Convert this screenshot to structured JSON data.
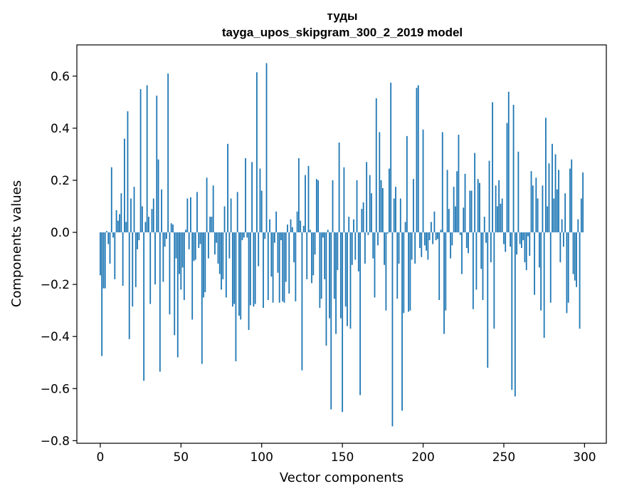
{
  "chart_data": {
    "type": "bar",
    "title": "туды",
    "subtitle": "tayga_upos_skipgram_300_2_2019 model",
    "xlabel": "Vector components",
    "ylabel": "Components values",
    "xlim": [
      -14.5,
      313.5
    ],
    "ylim": [
      -0.81,
      0.72
    ],
    "xticks": [
      0,
      50,
      100,
      150,
      200,
      250,
      300
    ],
    "xtick_labels": [
      "0",
      "50",
      "100",
      "150",
      "200",
      "250",
      "300"
    ],
    "yticks": [
      -0.8,
      -0.6,
      -0.4,
      -0.2,
      0.0,
      0.2,
      0.4,
      0.6
    ],
    "ytick_labels": [
      "−0.8",
      "−0.6",
      "−0.4",
      "−0.2",
      "0.0",
      "0.2",
      "0.4",
      "0.6"
    ],
    "color": "#1f77b4",
    "values": [
      -0.165,
      -0.475,
      -0.215,
      -0.215,
      0.005,
      -0.045,
      -0.12,
      0.25,
      -0.02,
      -0.18,
      0.085,
      0.045,
      0.07,
      0.15,
      -0.205,
      0.36,
      0.04,
      0.465,
      -0.41,
      0.13,
      -0.285,
      0.175,
      -0.21,
      -0.065,
      -0.03,
      0.55,
      0.1,
      -0.57,
      0.04,
      0.565,
      0.06,
      -0.275,
      0.09,
      0.13,
      -0.2,
      0.525,
      0.28,
      -0.535,
      0.165,
      -0.19,
      -0.055,
      -0.025,
      0.61,
      -0.315,
      0.035,
      0.03,
      -0.395,
      -0.1,
      -0.48,
      -0.16,
      -0.22,
      -0.135,
      -0.26,
      0.01,
      0.13,
      -0.065,
      0.135,
      -0.335,
      -0.11,
      -0.105,
      0.155,
      -0.06,
      -0.045,
      -0.505,
      -0.25,
      -0.23,
      0.21,
      -0.1,
      0.06,
      0.06,
      0.18,
      -0.085,
      -0.04,
      -0.12,
      -0.16,
      -0.22,
      -0.18,
      0.1,
      -0.25,
      0.34,
      -0.1,
      0.13,
      -0.285,
      -0.275,
      -0.495,
      0.155,
      -0.32,
      -0.335,
      -0.03,
      -0.02,
      0.285,
      -0.02,
      -0.375,
      -0.28,
      0.27,
      -0.285,
      -0.275,
      0.615,
      -0.13,
      0.245,
      0.16,
      -0.29,
      -0.025,
      0.65,
      -0.26,
      0.05,
      -0.17,
      -0.27,
      -0.04,
      0.08,
      -0.155,
      -0.27,
      -0.03,
      -0.265,
      -0.27,
      -0.19,
      0.03,
      -0.235,
      0.05,
      0.02,
      -0.115,
      -0.265,
      0.08,
      0.285,
      0.045,
      -0.53,
      0.025,
      0.22,
      -0.18,
      0.255,
      0.01,
      -0.195,
      -0.165,
      -0.085,
      0.205,
      0.2,
      -0.29,
      -0.255,
      -0.02,
      -0.18,
      -0.435,
      0.01,
      -0.33,
      -0.68,
      0.2,
      -0.255,
      -0.39,
      -0.145,
      0.345,
      -0.33,
      -0.69,
      0.25,
      -0.285,
      -0.36,
      0.06,
      -0.37,
      -0.125,
      0.05,
      -0.105,
      0.2,
      -0.15,
      -0.625,
      0.09,
      0.115,
      -0.12,
      0.27,
      -0.01,
      0.22,
      0.15,
      -0.1,
      -0.25,
      0.515,
      -0.05,
      0.385,
      0.2,
      0.17,
      -0.125,
      -0.3,
      -0.005,
      0.245,
      0.575,
      -0.745,
      0.13,
      0.175,
      -0.255,
      -0.12,
      0.13,
      -0.685,
      -0.31,
      0.04,
      0.37,
      -0.305,
      -0.3,
      -0.105,
      0.205,
      -0.12,
      0.555,
      0.565,
      -0.06,
      -0.095,
      0.395,
      -0.05,
      -0.07,
      -0.105,
      -0.03,
      0.04,
      -0.045,
      0.08,
      -0.03,
      -0.025,
      -0.26,
      0.01,
      0.385,
      -0.39,
      -0.3,
      0.24,
      0.09,
      -0.1,
      -0.05,
      0.175,
      0.1,
      0.235,
      0.375,
      -0.01,
      -0.16,
      0.095,
      0.225,
      -0.06,
      -0.08,
      0.16,
      0.16,
      -0.295,
      0.305,
      -0.22,
      0.205,
      0.19,
      -0.14,
      -0.26,
      0.06,
      -0.04,
      -0.52,
      0.275,
      -0.115,
      0.5,
      -0.37,
      0.18,
      0.1,
      0.2,
      0.11,
      0.13,
      -0.045,
      -0.075,
      0.42,
      0.54,
      -0.055,
      -0.605,
      0.49,
      -0.63,
      -0.085,
      0.31,
      -0.045,
      -0.06,
      -0.03,
      -0.115,
      -0.145,
      -0.015,
      -0.09,
      0.235,
      0.18,
      -0.24,
      0.21,
      0.13,
      -0.135,
      -0.3,
      0.18,
      -0.405,
      0.44,
      0.1,
      0.265,
      -0.27,
      0.34,
      0.13,
      0.3,
      0.165,
      0.24,
      -0.115,
      0.05,
      -0.055,
      0.15,
      -0.31,
      -0.27,
      0.245,
      0.28,
      -0.16,
      -0.185,
      -0.21,
      0.05,
      -0.37,
      0.13,
      0.23
    ]
  }
}
